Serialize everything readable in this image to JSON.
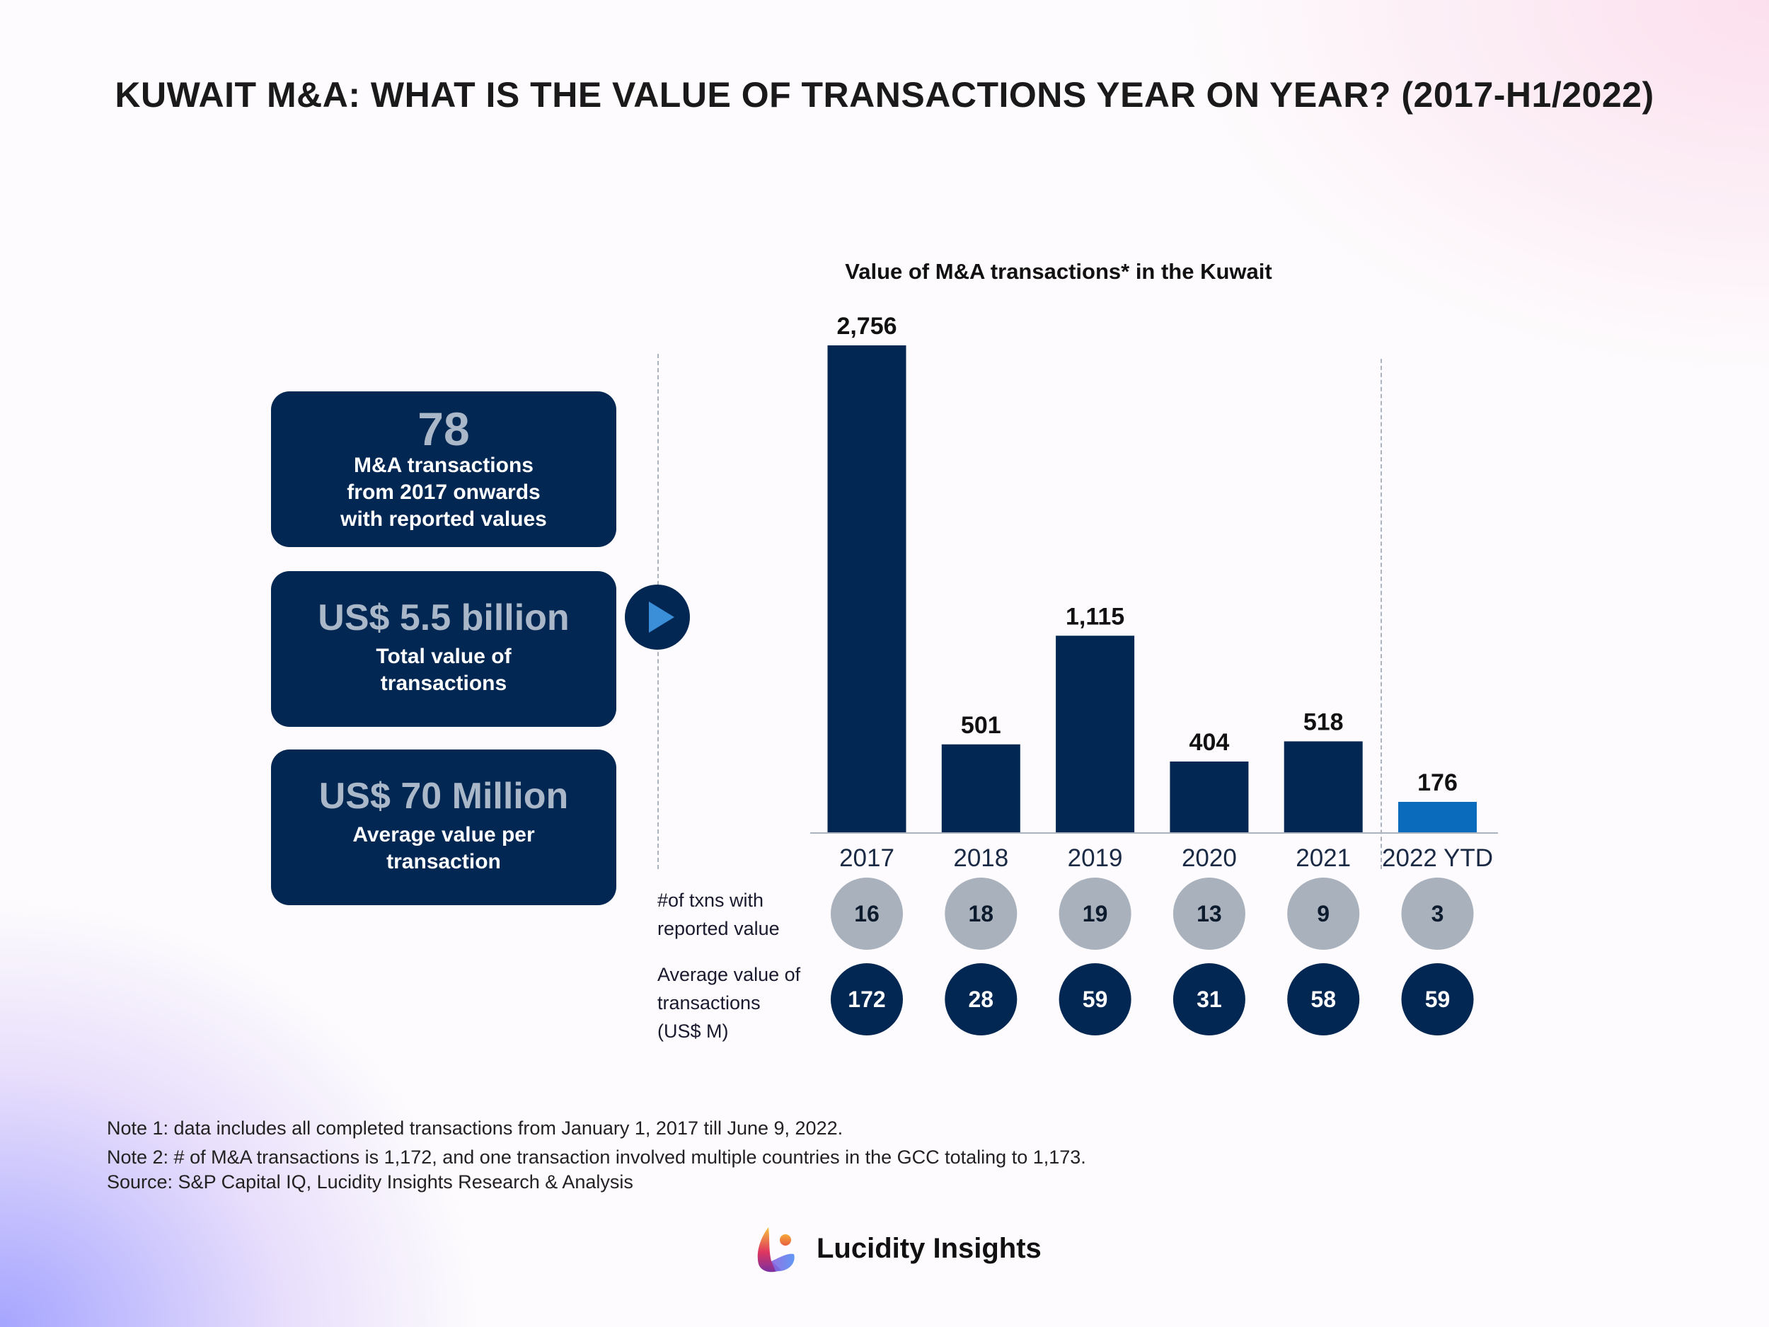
{
  "title": "KUWAIT M&A: WHAT IS THE VALUE OF TRANSACTIONS YEAR ON YEAR? (2017-H1/2022)",
  "kpis": [
    {
      "value": "78",
      "label_lines": [
        "M&A transactions",
        "from 2017 onwards",
        "with reported values"
      ]
    },
    {
      "value": "US$ 5.5 billion",
      "label_lines": [
        "Total value of",
        "transactions"
      ]
    },
    {
      "value": "US$ 70 Million",
      "label_lines": [
        "Average value per",
        "transaction"
      ]
    }
  ],
  "chart_data": {
    "type": "bar",
    "title": "Value of M&A transactions* in the Kuwait",
    "categories": [
      "2017",
      "2018",
      "2019",
      "2020",
      "2021",
      "2022 YTD"
    ],
    "values": [
      2756,
      501,
      1115,
      404,
      518,
      176
    ],
    "value_labels": [
      "2,756",
      "501",
      "1,115",
      "404",
      "518",
      "176"
    ],
    "ylim": [
      0,
      2756
    ],
    "grid": false,
    "colors": {
      "bar": "#022752",
      "highlight": "#0a6bbd"
    },
    "highlight_index": 5
  },
  "rows": [
    {
      "label_lines": [
        "#of txns with",
        "reported value"
      ],
      "values": [
        "16",
        "18",
        "19",
        "13",
        "9",
        "3"
      ],
      "color": "#a9b1bd",
      "text_color": "#0d1b2e"
    },
    {
      "label_lines": [
        "Average value of",
        "transactions",
        "(US$ M)"
      ],
      "values": [
        "172",
        "28",
        "59",
        "31",
        "58",
        "59"
      ],
      "color": "#022752",
      "text_color": "#ffffff"
    }
  ],
  "notes": [
    "Note 1: data includes all completed transactions from January 1, 2017 till June 9, 2022.",
    "Note 2: # of M&A transactions is 1,172, and one transaction involved multiple countries in the GCC totaling to 1,173.",
    "Source: S&P Capital IQ, Lucidity Insights Research & Analysis"
  ],
  "brand": "Lucidity Insights"
}
